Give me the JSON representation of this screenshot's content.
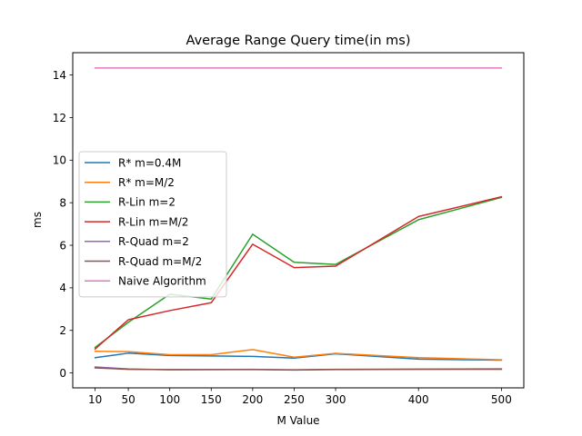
{
  "chart_data": {
    "type": "line",
    "title": "Average Range Query time(in ms)",
    "xlabel": "M Value",
    "ylabel": "ms",
    "x": [
      10,
      50,
      100,
      150,
      200,
      250,
      300,
      400,
      500
    ],
    "xticks": [
      10,
      50,
      100,
      150,
      200,
      250,
      300,
      400,
      500
    ],
    "yticks": [
      0,
      2,
      4,
      6,
      8,
      10,
      12,
      14
    ],
    "xlim": [
      -17,
      527
    ],
    "ylim": [
      -0.7,
      15.05
    ],
    "legend_position": "center-left",
    "grid": false,
    "series": [
      {
        "name": "R* m=0.4M",
        "color": "#1f77b4",
        "values": [
          0.72,
          0.93,
          0.82,
          0.8,
          0.78,
          0.7,
          0.9,
          0.65,
          0.6
        ]
      },
      {
        "name": "R* m=M/2",
        "color": "#ff7f0e",
        "values": [
          1.02,
          1.0,
          0.86,
          0.86,
          1.1,
          0.74,
          0.92,
          0.72,
          0.62
        ]
      },
      {
        "name": "R-Lin m=2",
        "color": "#2ca02c",
        "values": [
          1.2,
          2.38,
          3.7,
          3.47,
          6.52,
          5.2,
          5.1,
          7.2,
          8.25
        ]
      },
      {
        "name": "R-Lin m=M/2",
        "color": "#d62728",
        "values": [
          1.13,
          2.5,
          2.93,
          3.3,
          6.05,
          4.95,
          5.02,
          7.35,
          8.28
        ]
      },
      {
        "name": "R-Quad m=2",
        "color": "#9467bd",
        "values": [
          0.28,
          0.19,
          0.15,
          0.16,
          0.17,
          0.14,
          0.16,
          0.17,
          0.17
        ]
      },
      {
        "name": "R-Quad m=M/2",
        "color": "#8c564b",
        "values": [
          0.24,
          0.17,
          0.16,
          0.16,
          0.16,
          0.15,
          0.17,
          0.18,
          0.19
        ]
      },
      {
        "name": "Naive Algorithm",
        "color": "#e377c2",
        "values": [
          14.33,
          14.33,
          14.33,
          14.33,
          14.33,
          14.33,
          14.33,
          14.33,
          14.33
        ]
      }
    ]
  }
}
